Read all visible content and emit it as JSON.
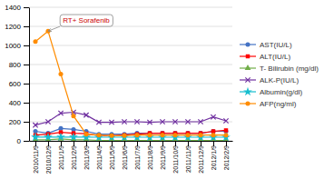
{
  "chart_data": {
    "type": "line",
    "categories": [
      "2010/11/9",
      "2010/12/9",
      "2011/1/9",
      "2011/2/9",
      "2011/3/9",
      "2011/4/9",
      "2011/5/9",
      "2011/6/9",
      "2011/7/9",
      "2011/8/9",
      "2011/9/9",
      "2011/10/9",
      "2011/11/9",
      "2011/12/9",
      "2012/1/9",
      "2012/2/9"
    ],
    "series": [
      {
        "name": "AST(IU/L)",
        "color": "#4472C4",
        "marker": "circle",
        "values": [
          100,
          80,
          130,
          120,
          100,
          70,
          70,
          70,
          80,
          80,
          80,
          80,
          80,
          80,
          100,
          100
        ]
      },
      {
        "name": "ALT(IU/L)",
        "color": "#FF0000",
        "marker": "square",
        "values": [
          60,
          70,
          90,
          80,
          75,
          55,
          55,
          60,
          70,
          80,
          80,
          80,
          80,
          80,
          100,
          110
        ]
      },
      {
        "name": "T- Bilirubin (mg/dl)",
        "color": "#70AD47",
        "marker": "triangle",
        "values": [
          10,
          10,
          20,
          10,
          10,
          5,
          5,
          5,
          5,
          5,
          5,
          5,
          5,
          5,
          5,
          5
        ]
      },
      {
        "name": "ALK-P(IU/L)",
        "color": "#7030A0",
        "marker": "x",
        "values": [
          165,
          200,
          290,
          300,
          270,
          195,
          195,
          200,
          200,
          195,
          200,
          200,
          200,
          200,
          250,
          210
        ]
      },
      {
        "name": "Albumin(g/dl)",
        "color": "#17BECF",
        "marker": "star",
        "values": [
          40,
          40,
          40,
          40,
          40,
          38,
          38,
          38,
          38,
          38,
          38,
          38,
          38,
          38,
          38,
          38
        ]
      },
      {
        "name": "AFP(ng/ml)",
        "color": "#FF8C00",
        "marker": "circle",
        "values": [
          1040,
          1150,
          700,
          260,
          70,
          60,
          55,
          55,
          60,
          60,
          60,
          60,
          60,
          60,
          60,
          60
        ]
      }
    ],
    "ylim": [
      0,
      1400
    ],
    "yticks": [
      0,
      200,
      400,
      600,
      800,
      1000,
      1200,
      1400
    ],
    "grid": true,
    "legend": "right",
    "annotations": [
      {
        "text": "RT+ Sorafenib",
        "x": "2010/12/9",
        "y": 1150,
        "color": "#CC0000"
      }
    ]
  }
}
